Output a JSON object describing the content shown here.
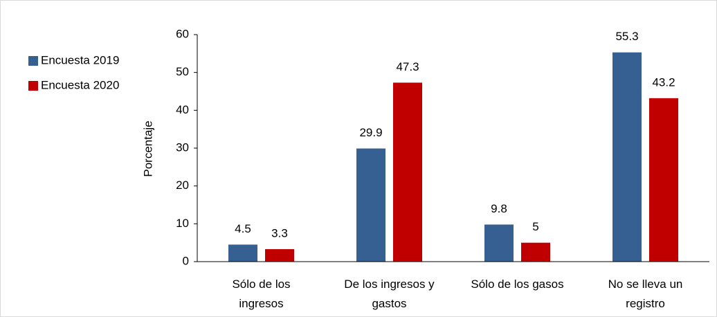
{
  "chart_data": {
    "type": "bar",
    "y_label": "Porcentaje",
    "categories": [
      "Sólo de los\ningresos",
      "De los ingresos y\ngastos",
      "Sólo de los gasos",
      "No se lleva un\nregistro"
    ],
    "series": [
      {
        "name": "Encuesta 2019",
        "color": "#376092",
        "values": [
          4.5,
          29.9,
          9.8,
          55.3
        ]
      },
      {
        "name": "Encuesta 2020",
        "color": "#c00000",
        "values": [
          3.3,
          47.3,
          5,
          43.2
        ]
      }
    ],
    "ylim": [
      0,
      60
    ],
    "yticks": [
      0,
      10,
      20,
      30,
      40,
      50,
      60
    ],
    "grid": false,
    "legend": "left"
  }
}
